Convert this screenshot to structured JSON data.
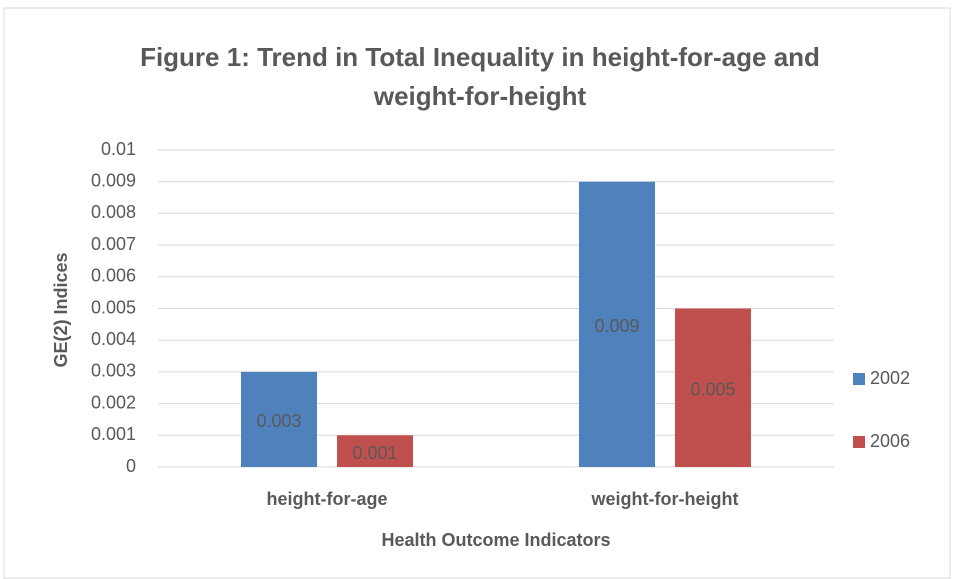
{
  "chart_data": {
    "type": "bar",
    "title": "Figure 1: Trend in Total Inequality in height-for-age and weight-for-height",
    "x_label": "Health Outcome Indicators",
    "y_label": "GE(2) Indices",
    "categories": [
      "height-for-age",
      "weight-for-height"
    ],
    "series": [
      {
        "name": "2002",
        "color": "#4f81bd",
        "values": [
          0.003,
          0.009
        ]
      },
      {
        "name": "2006",
        "color": "#c0504d",
        "values": [
          0.001,
          0.005
        ]
      }
    ],
    "ylim": [
      0,
      0.01
    ],
    "yticks": [
      0,
      0.001,
      0.002,
      0.003,
      0.004,
      0.005,
      0.006,
      0.007,
      0.008,
      0.009,
      0.01
    ],
    "grid": true,
    "legend": "right"
  }
}
